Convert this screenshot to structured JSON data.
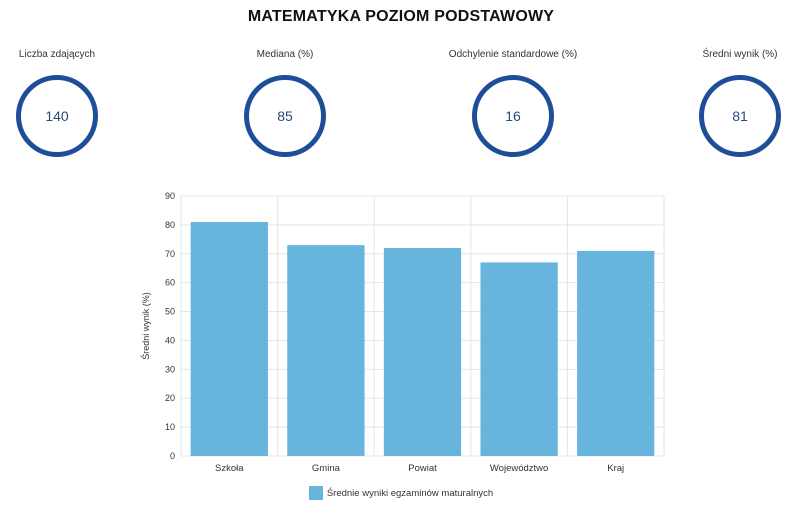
{
  "title": "MATEMATYKA POZIOM PODSTAWOWY",
  "stats": [
    {
      "label": "Liczba zdających",
      "value": "140"
    },
    {
      "label": "Mediana (%)",
      "value": "85"
    },
    {
      "label": "Odchylenie standardowe (%)",
      "value": "16"
    },
    {
      "label": "Średni wynik (%)",
      "value": "81"
    }
  ],
  "colors": {
    "ring": "#1f4e99",
    "bar": "#67b5dd",
    "grid": "#e5e5e5"
  },
  "chart_data": {
    "type": "bar",
    "categories": [
      "Szkoła",
      "Gmina",
      "Powiat",
      "Województwo",
      "Kraj"
    ],
    "series": [
      {
        "name": "Średnie wyniki egzaminów maturalnych",
        "values": [
          81,
          73,
          72,
          67,
          71
        ]
      }
    ],
    "ylabel": "Średni wynik (%)",
    "xlabel": "",
    "ylim": [
      0,
      90
    ],
    "yticks": [
      0,
      10,
      20,
      30,
      40,
      50,
      60,
      70,
      80,
      90
    ],
    "grid": true,
    "legend_position": "bottom"
  }
}
